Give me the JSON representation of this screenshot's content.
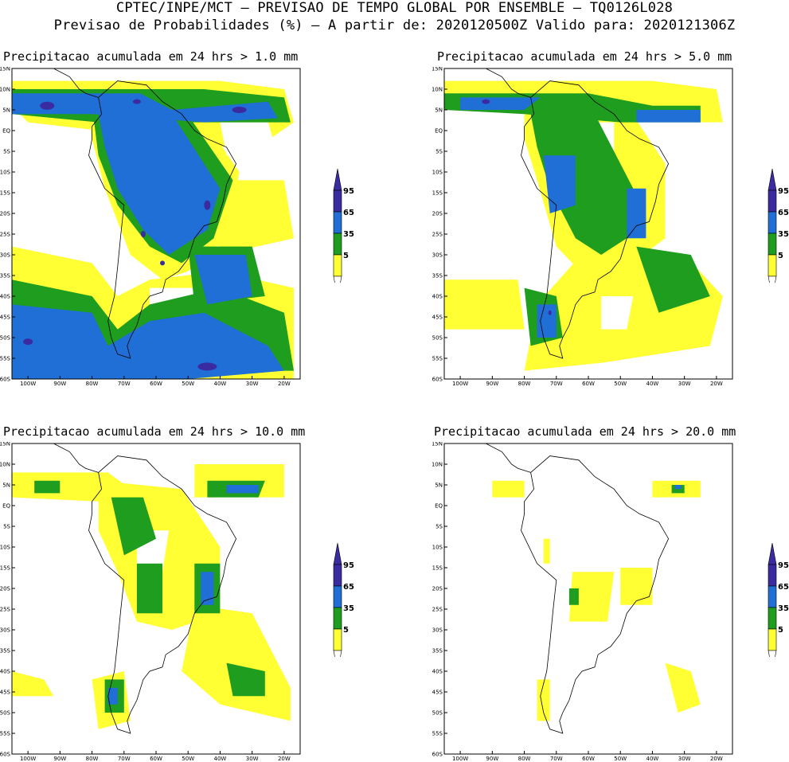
{
  "header": {
    "line1": "CPTEC/INPE/MCT – PREVISAO DE TEMPO GLOBAL POR ENSEMBLE – TQ0126L028",
    "line2": "Previsao de Probabilidades (%) –  A partir de: 2020120500Z  Valido para: 2020121306Z"
  },
  "colors": {
    "p5": "#ffff33",
    "p35": "#1f9d1f",
    "p65": "#1f6fd6",
    "p95": "#3a2ca0",
    "coast": "#000000"
  },
  "axes": {
    "lat_labels": [
      "15N",
      "10N",
      "5N",
      "EQ",
      "5S",
      "10S",
      "15S",
      "20S",
      "25S",
      "30S",
      "35S",
      "40S",
      "45S",
      "50S",
      "55S",
      "60S"
    ],
    "lon_labels": [
      "100W",
      "90W",
      "80W",
      "70W",
      "60W",
      "50W",
      "40W",
      "30W",
      "20W"
    ]
  },
  "colorbar": {
    "labels": [
      "95",
      "65",
      "35",
      "5"
    ]
  },
  "panels": [
    {
      "title": "Precipitacao acumulada em 24 hrs > 1.0 mm"
    },
    {
      "title": "Precipitacao acumulada em 24 hrs > 5.0 mm"
    },
    {
      "title": "Precipitacao acumulada em 24 hrs > 10.0 mm"
    },
    {
      "title": "Precipitacao acumulada em 24 hrs > 20.0 mm"
    }
  ]
}
